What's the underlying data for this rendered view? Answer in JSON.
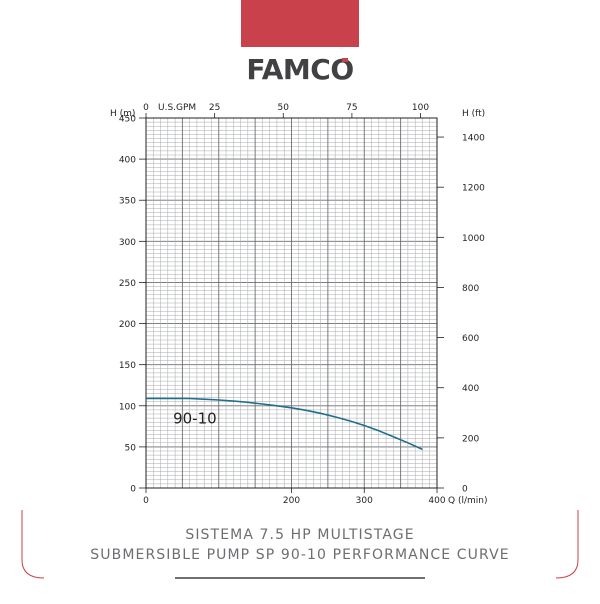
{
  "brand": {
    "logo_text": "FAMCO",
    "accent_color": "#c8414b",
    "logo_color": "#414042"
  },
  "caption": {
    "line1": "SISTEMA 7.5 HP MULTISTAGE",
    "line2": "SUBMERSIBLE PUMP SP 90-10 PERFORMANCE CURVE"
  },
  "chart_data": {
    "type": "line",
    "title": "",
    "xlabel": "Q (l/min)",
    "ylabel": "H (m)",
    "x2label": "U.S.GPM",
    "y2label": "H (ft)",
    "xlim": [
      0,
      400
    ],
    "ylim": [
      0,
      450
    ],
    "x2lim": [
      0,
      106
    ],
    "y2lim": [
      0,
      1476
    ],
    "x_ticks": [
      0,
      200,
      300,
      400
    ],
    "y_ticks": [
      0,
      50,
      100,
      150,
      200,
      250,
      300,
      350,
      400,
      450
    ],
    "x2_ticks": [
      0,
      25,
      50,
      75,
      100
    ],
    "y2_ticks": [
      0,
      200,
      400,
      600,
      800,
      1000,
      1200,
      1400
    ],
    "grid": true,
    "line_color": "#1e6e8c",
    "series": [
      {
        "name": "90-10",
        "x": [
          0,
          20,
          40,
          60,
          80,
          100,
          120,
          140,
          160,
          180,
          200,
          220,
          240,
          260,
          280,
          300,
          320,
          340,
          360,
          380
        ],
        "y": [
          109,
          109,
          109,
          108.8,
          108,
          107,
          105.8,
          104.2,
          102.2,
          100,
          97.6,
          94.5,
          90.8,
          86.5,
          81.6,
          76,
          69.6,
          62.4,
          55,
          47
        ]
      }
    ]
  }
}
